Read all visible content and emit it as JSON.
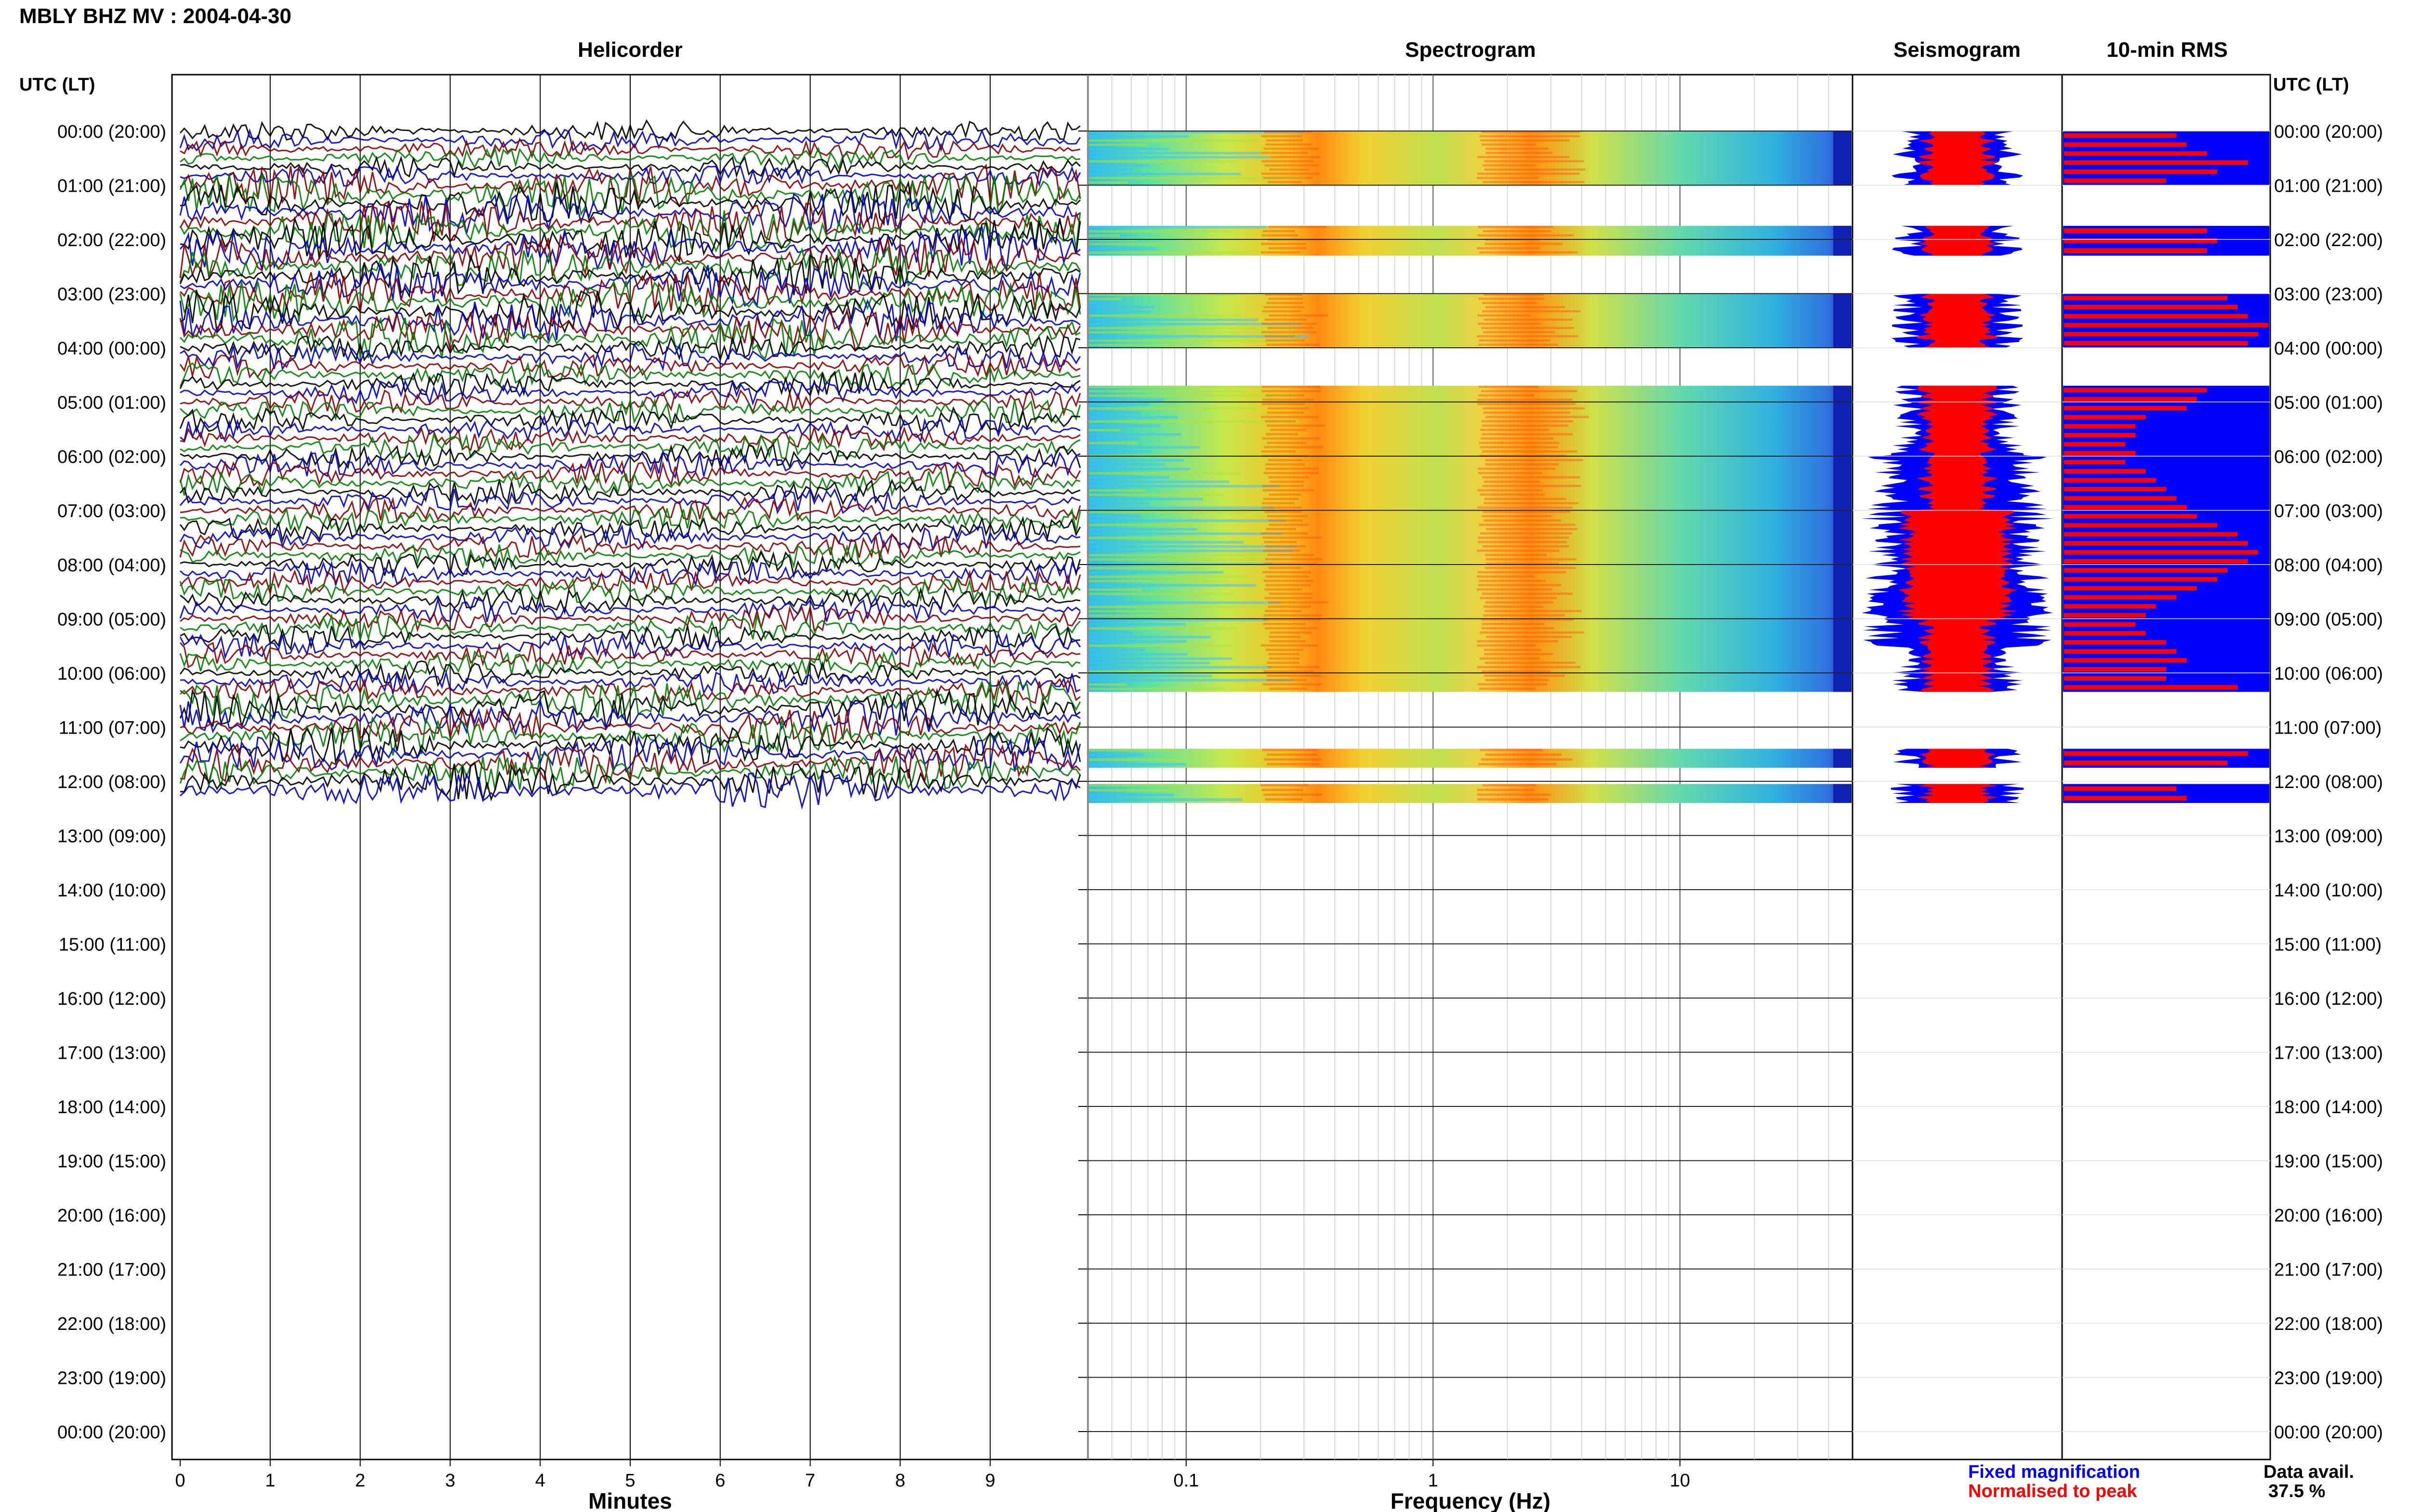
{
  "header": {
    "title": "MBLY BHZ MV : 2004-04-30",
    "utc_label_left": "UTC (LT)",
    "utc_label_right": "UTC (LT)"
  },
  "panels": {
    "helicorder": "Helicorder",
    "spectrogram": "Spectrogram",
    "seismogram": "Seismogram",
    "rms": "10-min RMS"
  },
  "axes": {
    "minutes_label": "Minutes",
    "minutes_ticks": [
      "0",
      "1",
      "2",
      "3",
      "4",
      "5",
      "6",
      "7",
      "8",
      "9"
    ],
    "frequency_label": "Frequency (Hz)",
    "frequency_ticks": [
      "0.1",
      "1",
      "10"
    ]
  },
  "time_labels": [
    "00:00 (20:00)",
    "01:00 (21:00)",
    "02:00 (22:00)",
    "03:00 (23:00)",
    "04:00 (00:00)",
    "05:00 (01:00)",
    "06:00 (02:00)",
    "07:00 (03:00)",
    "08:00 (04:00)",
    "09:00 (05:00)",
    "10:00 (06:00)",
    "11:00 (07:00)",
    "12:00 (08:00)",
    "13:00 (09:00)",
    "14:00 (10:00)",
    "15:00 (11:00)",
    "16:00 (12:00)",
    "17:00 (13:00)",
    "18:00 (14:00)",
    "19:00 (15:00)",
    "20:00 (16:00)",
    "21:00 (17:00)",
    "22:00 (18:00)",
    "23:00 (19:00)",
    "00:00 (20:00)"
  ],
  "legend": {
    "fixed": "Fixed magnification",
    "normalised": "Normalised to peak",
    "fixed_color": "#0000ff",
    "normalised_color": "#ff0000"
  },
  "availability": {
    "label": "Data avail.",
    "value": "37.5 %"
  },
  "chart_data": {
    "type": "heatmap",
    "data_availability_percent": 37.5,
    "data_intervals_hours": [
      [
        0,
        1
      ],
      [
        1.75,
        2.3
      ],
      [
        3,
        4
      ],
      [
        4.7,
        10.35
      ],
      [
        11.4,
        11.75
      ],
      [
        12.05,
        12.4
      ]
    ],
    "helicorder_trace_colors": [
      "#000000",
      "#0000cc",
      "#8b0000",
      "#008000"
    ],
    "helicorder_data_hours": [
      0,
      12.4
    ],
    "frequency_range_hz": [
      0.04,
      50
    ],
    "spectral_peak_bands_hz": [
      [
        0.2,
        0.35
      ],
      [
        1.5,
        4
      ]
    ],
    "rms_relative_10min": [
      0.55,
      0.6,
      0.7,
      0.9,
      0.75,
      0.5,
      0.7,
      0.75,
      0.7,
      0.8,
      0.85,
      0.9,
      1.0,
      0.95,
      0.9,
      0.7,
      0.65,
      0.6,
      0.4,
      0.35,
      0.35,
      0.3,
      0.35,
      0.3,
      0.4,
      0.45,
      0.5,
      0.55,
      0.6,
      0.65,
      0.75,
      0.85,
      0.9,
      0.95,
      0.9,
      0.8,
      0.75,
      0.65,
      0.55,
      0.45,
      0.4,
      0.35,
      0.4,
      0.5,
      0.55,
      0.6,
      0.5,
      0.5,
      0.85,
      0.9,
      0.8
    ]
  }
}
